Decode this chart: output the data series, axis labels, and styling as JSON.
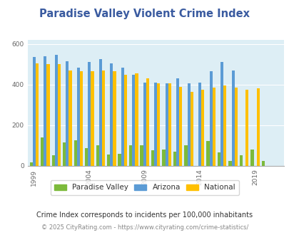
{
  "title": "Paradise Valley Violent Crime Index",
  "years": [
    1999,
    2000,
    2001,
    2002,
    2003,
    2004,
    2005,
    2006,
    2007,
    2008,
    2009,
    2010,
    2011,
    2012,
    2013,
    2014,
    2015,
    2016,
    2017,
    2018,
    2019,
    2020,
    2021
  ],
  "paradise_valley": [
    15,
    140,
    50,
    115,
    125,
    85,
    100,
    55,
    60,
    100,
    100,
    75,
    80,
    70,
    100,
    0,
    120,
    65,
    25,
    50,
    80,
    25,
    0
  ],
  "arizona": [
    535,
    540,
    545,
    515,
    485,
    510,
    525,
    505,
    485,
    450,
    410,
    410,
    405,
    430,
    405,
    410,
    465,
    510,
    470,
    0,
    0,
    0,
    0
  ],
  "national": [
    505,
    500,
    500,
    470,
    465,
    465,
    470,
    465,
    450,
    455,
    430,
    405,
    405,
    390,
    365,
    375,
    385,
    395,
    385,
    375,
    380,
    0,
    0
  ],
  "color_pv": "#7cba3b",
  "color_az": "#5b9bd5",
  "color_nat": "#ffc000",
  "bg_color": "#ddeef5",
  "ylim_max": 620,
  "yticks": [
    0,
    200,
    400,
    600
  ],
  "xtick_years": [
    1999,
    2004,
    2009,
    2014,
    2019
  ],
  "subtitle": "Crime Index corresponds to incidents per 100,000 inhabitants",
  "footer": "© 2025 CityRating.com - https://www.cityrating.com/crime-statistics/",
  "legend_labels": [
    "Paradise Valley",
    "Arizona",
    "National"
  ],
  "title_color": "#3a5ba0",
  "subtitle_color": "#333333",
  "footer_color": "#888888",
  "bar_width": 0.27
}
